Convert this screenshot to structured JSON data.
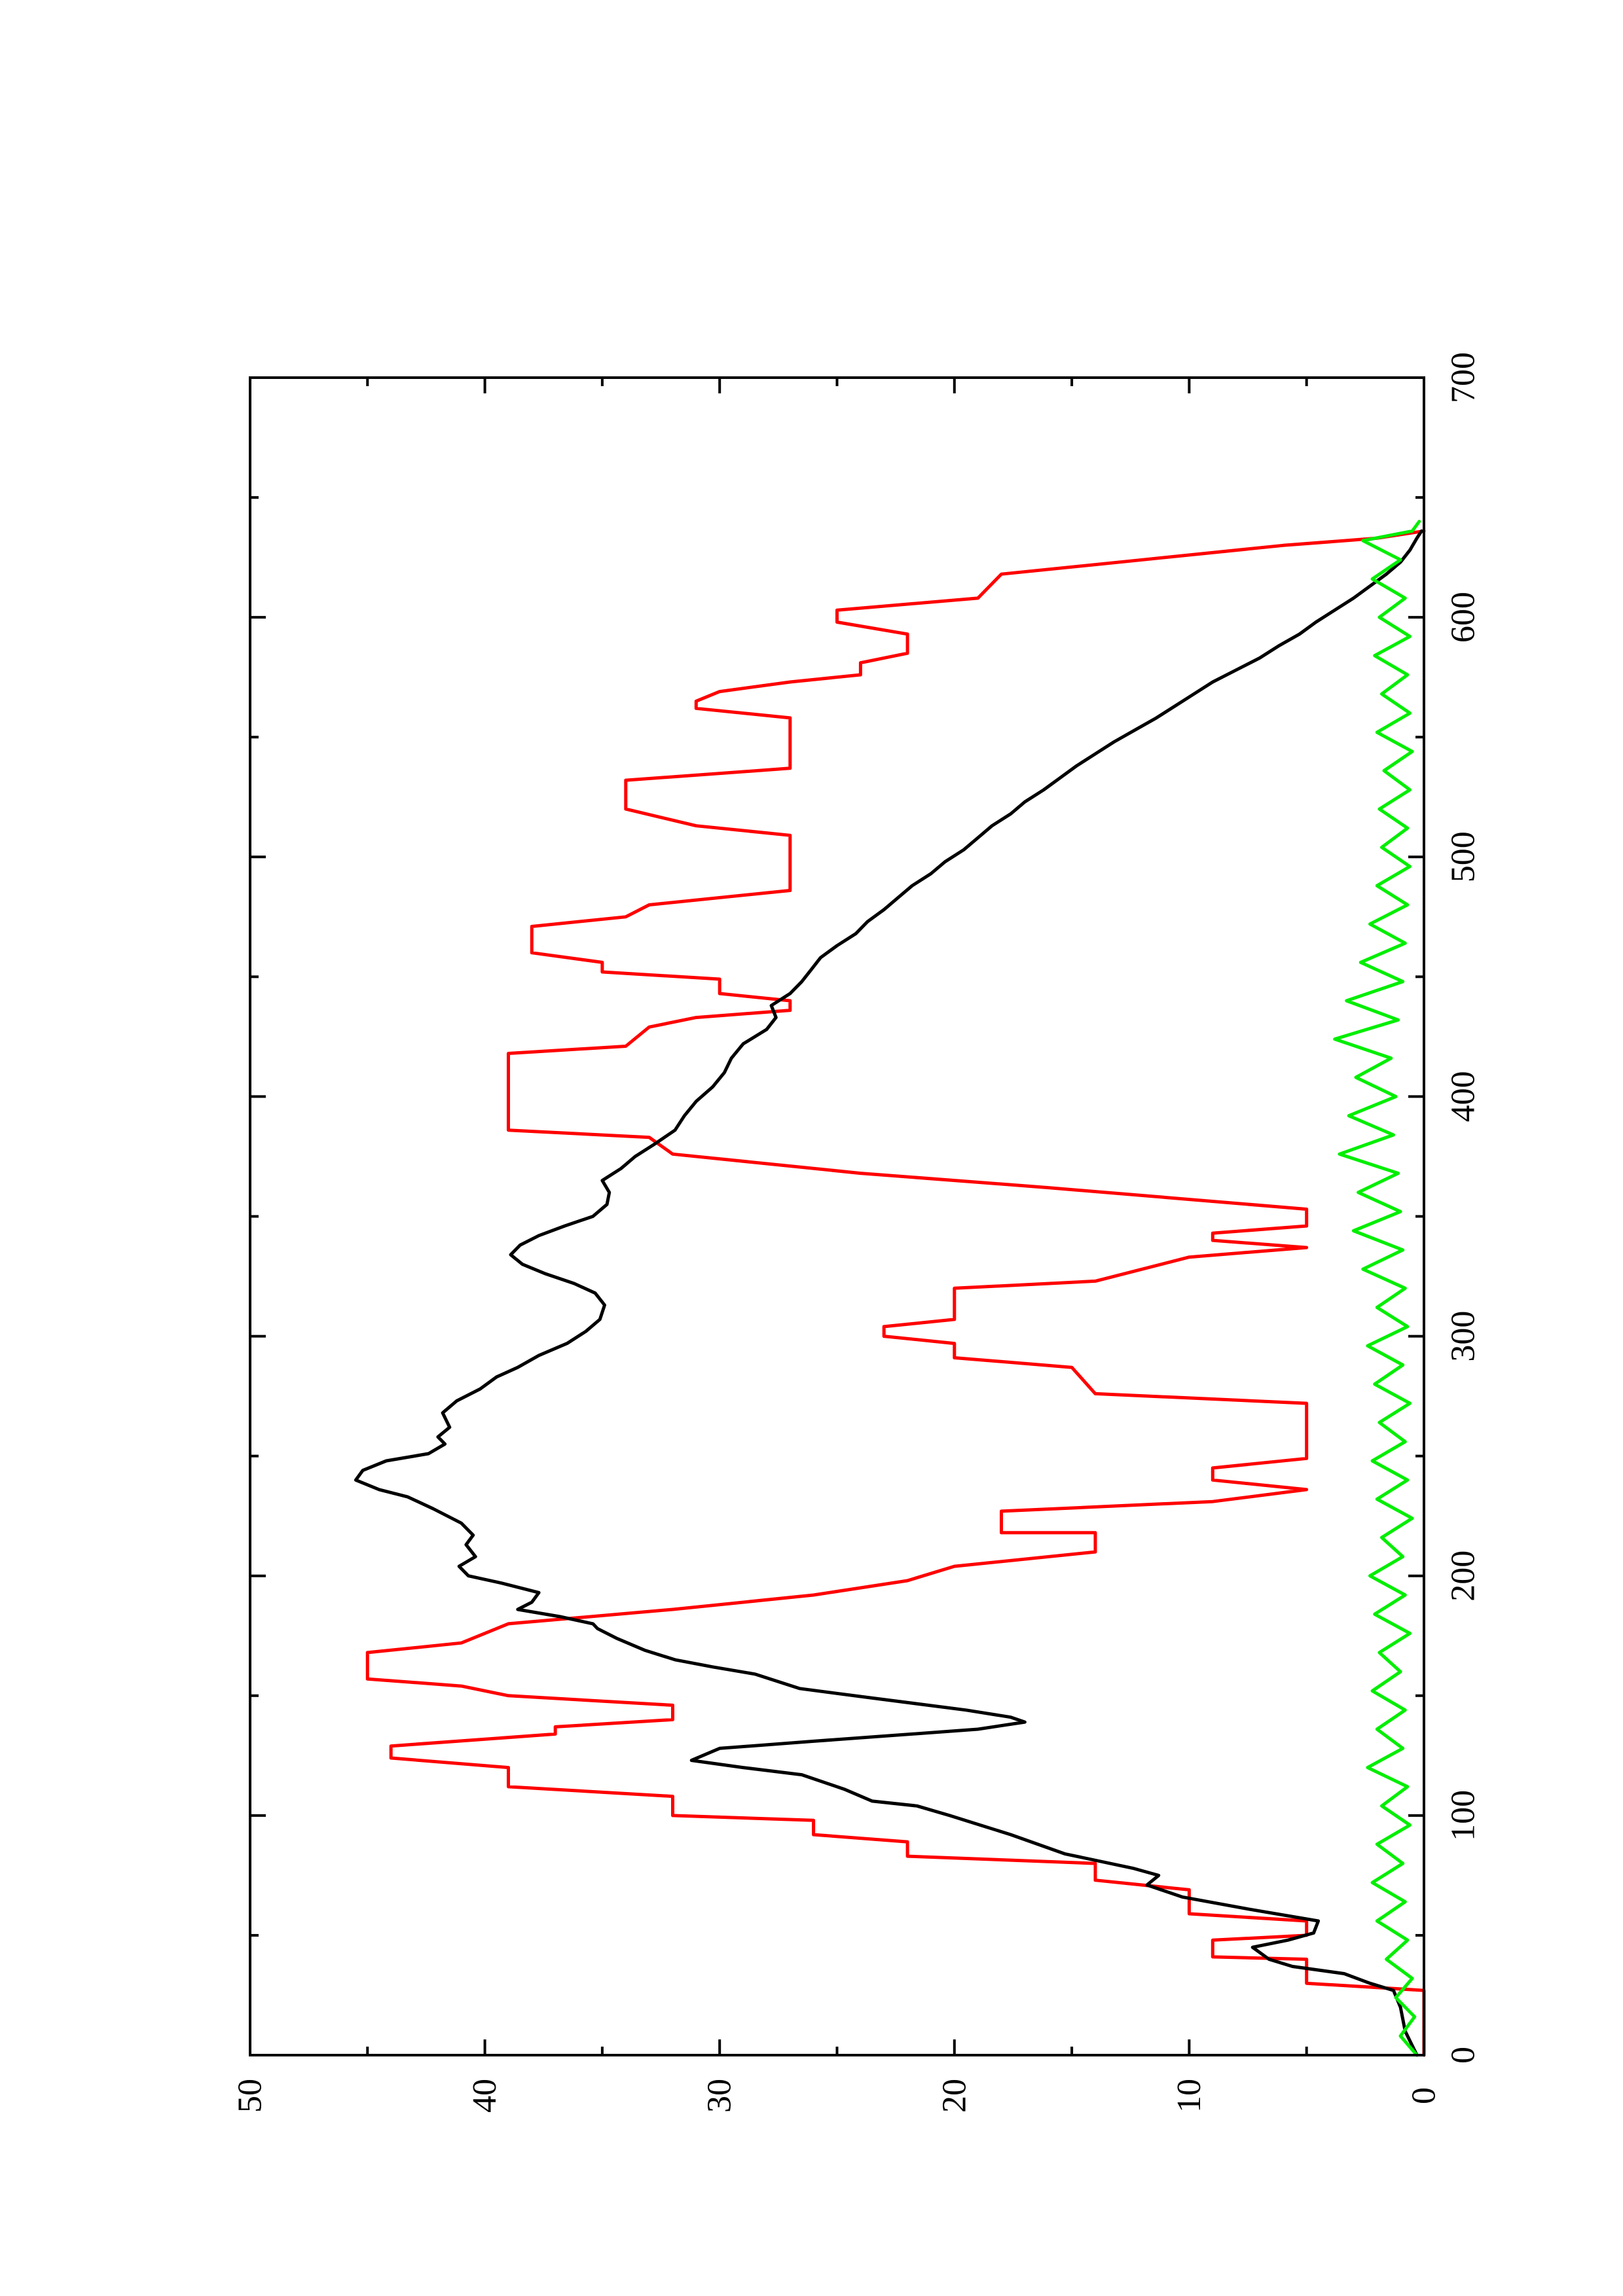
{
  "chart_data": {
    "type": "line",
    "title": "",
    "xlabel": "",
    "ylabel": "",
    "xlim": [
      0,
      700
    ],
    "ylim": [
      0,
      50
    ],
    "x_ticks": [
      0,
      100,
      200,
      300,
      400,
      500,
      600,
      700
    ],
    "y_ticks": [
      0,
      10,
      20,
      30,
      40,
      50
    ],
    "x_tick_labels": [
      "0",
      "100",
      "200",
      "300",
      "400",
      "500",
      "600",
      "700"
    ],
    "y_tick_labels": [
      "0",
      "10",
      "20",
      "30",
      "40",
      "50"
    ],
    "x_minor_step": 50,
    "y_minor_step": 5,
    "grid": false,
    "legend": "none",
    "orientation": "rotated 90 degrees counter-clockwise on the page",
    "series": [
      {
        "color": "#ff0000",
        "points": [
          [
            0,
            0
          ],
          [
            27,
            0
          ],
          [
            30,
            5
          ],
          [
            40,
            5
          ],
          [
            41,
            9
          ],
          [
            48,
            9
          ],
          [
            50,
            5
          ],
          [
            56,
            5
          ],
          [
            59,
            10
          ],
          [
            69,
            10
          ],
          [
            73,
            14
          ],
          [
            80,
            14
          ],
          [
            83,
            22
          ],
          [
            89,
            22
          ],
          [
            92,
            26
          ],
          [
            98,
            26
          ],
          [
            100,
            32
          ],
          [
            108,
            32
          ],
          [
            112,
            39
          ],
          [
            120,
            39
          ],
          [
            124,
            44
          ],
          [
            129,
            44
          ],
          [
            134,
            37
          ],
          [
            137,
            37
          ],
          [
            140,
            32
          ],
          [
            146,
            32
          ],
          [
            150,
            39
          ],
          [
            154,
            41
          ],
          [
            157,
            45
          ],
          [
            168,
            45
          ],
          [
            172,
            41
          ],
          [
            180,
            39
          ],
          [
            186,
            32
          ],
          [
            192,
            26
          ],
          [
            198,
            22
          ],
          [
            204,
            20
          ],
          [
            210,
            14
          ],
          [
            218,
            14
          ],
          [
            218,
            18
          ],
          [
            227,
            18
          ],
          [
            231,
            9
          ],
          [
            236,
            5
          ],
          [
            240,
            9
          ],
          [
            245,
            9
          ],
          [
            249,
            5
          ],
          [
            272,
            5
          ],
          [
            276,
            14
          ],
          [
            287,
            15
          ],
          [
            291,
            20
          ],
          [
            297,
            20
          ],
          [
            300,
            23
          ],
          [
            304,
            23
          ],
          [
            307,
            20
          ],
          [
            320,
            20
          ],
          [
            323,
            14
          ],
          [
            333,
            10
          ],
          [
            337,
            5
          ],
          [
            340,
            9
          ],
          [
            343,
            9
          ],
          [
            346,
            5
          ],
          [
            353,
            5
          ],
          [
            362,
            16
          ],
          [
            368,
            24
          ],
          [
            376,
            32
          ],
          [
            383,
            33
          ],
          [
            386,
            39
          ],
          [
            418,
            39
          ],
          [
            421,
            34
          ],
          [
            429,
            33
          ],
          [
            433,
            31
          ],
          [
            436,
            27
          ],
          [
            440,
            27
          ],
          [
            443,
            30
          ],
          [
            449,
            30
          ],
          [
            452,
            35
          ],
          [
            456,
            35
          ],
          [
            460,
            38
          ],
          [
            471,
            38
          ],
          [
            475,
            34
          ],
          [
            480,
            33
          ],
          [
            486,
            27
          ],
          [
            509,
            27
          ],
          [
            513,
            31
          ],
          [
            520,
            34
          ],
          [
            523,
            34
          ],
          [
            532,
            34
          ],
          [
            537,
            27
          ],
          [
            558,
            27
          ],
          [
            562,
            31
          ],
          [
            565,
            31
          ],
          [
            569,
            30
          ],
          [
            573,
            27
          ],
          [
            576,
            24
          ],
          [
            581,
            24
          ],
          [
            585,
            22
          ],
          [
            593,
            22
          ],
          [
            598,
            25
          ],
          [
            603,
            25
          ],
          [
            608,
            19
          ],
          [
            618,
            18
          ],
          [
            624,
            12
          ],
          [
            630,
            6
          ],
          [
            633,
            2
          ],
          [
            636,
            0
          ]
        ]
      },
      {
        "color": "#000000",
        "points": [
          [
            0,
            0.3
          ],
          [
            10,
            0.8
          ],
          [
            20,
            1.0
          ],
          [
            27,
            1.3
          ],
          [
            30,
            2.3
          ],
          [
            34,
            3.4
          ],
          [
            37,
            5.6
          ],
          [
            40,
            6.6
          ],
          [
            45,
            7.3
          ],
          [
            48,
            5.8
          ],
          [
            51,
            4.7
          ],
          [
            56,
            4.5
          ],
          [
            61,
            7.5
          ],
          [
            66,
            10.3
          ],
          [
            71,
            11.8
          ],
          [
            75,
            11.3
          ],
          [
            78,
            12.4
          ],
          [
            84,
            15.3
          ],
          [
            92,
            17.6
          ],
          [
            100,
            20.2
          ],
          [
            104,
            21.6
          ],
          [
            106,
            23.5
          ],
          [
            111,
            24.7
          ],
          [
            117,
            26.5
          ],
          [
            120,
            29.0
          ],
          [
            123,
            31.2
          ],
          [
            128,
            30.0
          ],
          [
            131,
            26.0
          ],
          [
            136,
            19.0
          ],
          [
            139,
            17.0
          ],
          [
            141,
            17.6
          ],
          [
            144,
            19.5
          ],
          [
            149,
            23.5
          ],
          [
            153,
            26.6
          ],
          [
            159,
            28.5
          ],
          [
            162,
            30.3
          ],
          [
            165,
            31.9
          ],
          [
            169,
            33.2
          ],
          [
            174,
            34.4
          ],
          [
            178,
            35.2
          ],
          [
            180,
            35.4
          ],
          [
            183,
            36.8
          ],
          [
            186,
            38.6
          ],
          [
            189,
            38.0
          ],
          [
            193,
            37.7
          ],
          [
            197,
            39.3
          ],
          [
            200,
            40.7
          ],
          [
            204,
            41.1
          ],
          [
            208,
            40.4
          ],
          [
            213,
            40.8
          ],
          [
            217,
            40.5
          ],
          [
            222,
            41.0
          ],
          [
            228,
            42.2
          ],
          [
            233,
            43.3
          ],
          [
            236,
            44.5
          ],
          [
            240,
            45.5
          ],
          [
            244,
            45.2
          ],
          [
            248,
            44.2
          ],
          [
            251,
            42.4
          ],
          [
            255,
            41.7
          ],
          [
            258,
            42.0
          ],
          [
            262,
            41.5
          ],
          [
            268,
            41.8
          ],
          [
            273,
            41.2
          ],
          [
            278,
            40.2
          ],
          [
            283,
            39.5
          ],
          [
            287,
            38.6
          ],
          [
            292,
            37.7
          ],
          [
            297,
            36.5
          ],
          [
            302,
            35.7
          ],
          [
            307,
            35.1
          ],
          [
            313,
            34.9
          ],
          [
            318,
            35.3
          ],
          [
            322,
            36.2
          ],
          [
            326,
            37.4
          ],
          [
            330,
            38.4
          ],
          [
            334,
            38.9
          ],
          [
            338,
            38.5
          ],
          [
            342,
            37.7
          ],
          [
            346,
            36.6
          ],
          [
            350,
            35.4
          ],
          [
            355,
            34.8
          ],
          [
            360,
            34.7
          ],
          [
            365,
            35.0
          ],
          [
            370,
            34.2
          ],
          [
            375,
            33.6
          ],
          [
            380,
            32.8
          ],
          [
            386,
            31.9
          ],
          [
            392,
            31.5
          ],
          [
            398,
            31.0
          ],
          [
            404,
            30.3
          ],
          [
            410,
            29.8
          ],
          [
            416,
            29.5
          ],
          [
            422,
            29.0
          ],
          [
            428,
            28.0
          ],
          [
            433,
            27.6
          ],
          [
            438,
            27.8
          ],
          [
            443,
            27.0
          ],
          [
            448,
            26.5
          ],
          [
            453,
            26.1
          ],
          [
            458,
            25.7
          ],
          [
            463,
            25.0
          ],
          [
            468,
            24.2
          ],
          [
            473,
            23.7
          ],
          [
            478,
            23.0
          ],
          [
            483,
            22.4
          ],
          [
            488,
            21.8
          ],
          [
            493,
            21.0
          ],
          [
            498,
            20.4
          ],
          [
            503,
            19.6
          ],
          [
            508,
            19.0
          ],
          [
            513,
            18.4
          ],
          [
            518,
            17.6
          ],
          [
            523,
            17.0
          ],
          [
            528,
            16.2
          ],
          [
            533,
            15.5
          ],
          [
            538,
            14.8
          ],
          [
            543,
            14.0
          ],
          [
            548,
            13.2
          ],
          [
            553,
            12.3
          ],
          [
            558,
            11.4
          ],
          [
            563,
            10.6
          ],
          [
            568,
            9.8
          ],
          [
            573,
            9.0
          ],
          [
            578,
            8.0
          ],
          [
            583,
            7.0
          ],
          [
            588,
            6.2
          ],
          [
            593,
            5.3
          ],
          [
            598,
            4.6
          ],
          [
            603,
            3.8
          ],
          [
            608,
            3.0
          ],
          [
            613,
            2.3
          ],
          [
            618,
            1.6
          ],
          [
            623,
            1.0
          ],
          [
            628,
            0.6
          ],
          [
            633,
            0.3
          ],
          [
            636,
            0.1
          ]
        ]
      },
      {
        "color": "#00ee00",
        "points": [
          [
            0,
            0.3
          ],
          [
            8,
            1.0
          ],
          [
            16,
            0.4
          ],
          [
            24,
            1.2
          ],
          [
            32,
            0.5
          ],
          [
            40,
            1.6
          ],
          [
            48,
            0.7
          ],
          [
            56,
            2.0
          ],
          [
            64,
            0.8
          ],
          [
            72,
            2.2
          ],
          [
            80,
            0.9
          ],
          [
            88,
            2.0
          ],
          [
            96,
            0.6
          ],
          [
            104,
            1.8
          ],
          [
            112,
            0.7
          ],
          [
            120,
            2.4
          ],
          [
            128,
            0.9
          ],
          [
            136,
            2.0
          ],
          [
            144,
            0.8
          ],
          [
            152,
            2.2
          ],
          [
            160,
            1.0
          ],
          [
            168,
            1.9
          ],
          [
            176,
            0.6
          ],
          [
            184,
            2.1
          ],
          [
            192,
            0.8
          ],
          [
            200,
            2.3
          ],
          [
            208,
            0.9
          ],
          [
            216,
            1.8
          ],
          [
            224,
            0.5
          ],
          [
            232,
            2.0
          ],
          [
            240,
            0.7
          ],
          [
            248,
            2.2
          ],
          [
            256,
            0.8
          ],
          [
            264,
            1.9
          ],
          [
            272,
            0.6
          ],
          [
            280,
            2.1
          ],
          [
            288,
            0.9
          ],
          [
            296,
            2.4
          ],
          [
            304,
            0.7
          ],
          [
            312,
            2.0
          ],
          [
            320,
            0.8
          ],
          [
            328,
            2.6
          ],
          [
            336,
            0.9
          ],
          [
            344,
            3.0
          ],
          [
            352,
            1.0
          ],
          [
            360,
            2.8
          ],
          [
            368,
            1.1
          ],
          [
            376,
            3.6
          ],
          [
            384,
            1.3
          ],
          [
            392,
            3.2
          ],
          [
            400,
            1.2
          ],
          [
            408,
            2.9
          ],
          [
            416,
            1.4
          ],
          [
            424,
            3.8
          ],
          [
            432,
            1.1
          ],
          [
            440,
            3.3
          ],
          [
            448,
            0.9
          ],
          [
            456,
            2.7
          ],
          [
            464,
            0.8
          ],
          [
            472,
            2.3
          ],
          [
            480,
            0.7
          ],
          [
            488,
            2.0
          ],
          [
            496,
            0.6
          ],
          [
            504,
            1.8
          ],
          [
            512,
            0.7
          ],
          [
            520,
            1.9
          ],
          [
            528,
            0.6
          ],
          [
            536,
            1.7
          ],
          [
            544,
            0.5
          ],
          [
            552,
            2.0
          ],
          [
            560,
            0.6
          ],
          [
            568,
            1.8
          ],
          [
            576,
            0.7
          ],
          [
            584,
            2.1
          ],
          [
            592,
            0.6
          ],
          [
            600,
            1.9
          ],
          [
            608,
            0.8
          ],
          [
            616,
            2.2
          ],
          [
            624,
            1.0
          ],
          [
            632,
            2.6
          ],
          [
            636,
            0.5
          ],
          [
            640,
            0.2
          ]
        ]
      }
    ]
  }
}
